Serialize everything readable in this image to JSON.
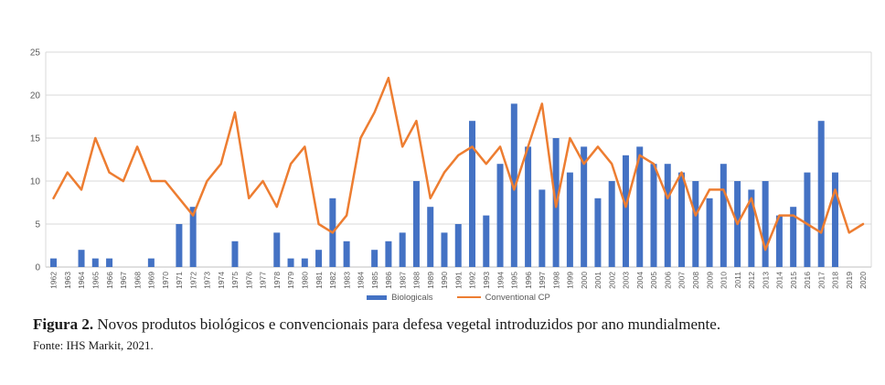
{
  "chart_data": {
    "type": "bar",
    "title": "",
    "xlabel": "",
    "ylabel": "",
    "categories": [
      "1962",
      "1963",
      "1964",
      "1965",
      "1966",
      "1967",
      "1968",
      "1969",
      "1970",
      "1971",
      "1972",
      "1973",
      "1974",
      "1975",
      "1976",
      "1977",
      "1978",
      "1979",
      "1980",
      "1981",
      "1982",
      "1983",
      "1984",
      "1985",
      "1986",
      "1987",
      "1988",
      "1989",
      "1990",
      "1991",
      "1992",
      "1993",
      "1994",
      "1995",
      "1996",
      "1997",
      "1998",
      "1999",
      "2000",
      "2001",
      "2002",
      "2003",
      "2004",
      "2005",
      "2006",
      "2007",
      "2008",
      "2009",
      "2010",
      "2011",
      "2012",
      "2013",
      "2014",
      "2015",
      "2016",
      "2017",
      "2018",
      "2019",
      "2020"
    ],
    "series": [
      {
        "name": "Biologicals",
        "type": "bar",
        "color": "#4472C4",
        "values": [
          1,
          0,
          2,
          1,
          1,
          0,
          0,
          1,
          0,
          5,
          7,
          0,
          0,
          3,
          0,
          0,
          4,
          1,
          1,
          2,
          8,
          3,
          0,
          2,
          3,
          4,
          10,
          7,
          4,
          5,
          17,
          6,
          12,
          19,
          14,
          9,
          15,
          11,
          14,
          8,
          10,
          13,
          14,
          12,
          12,
          11,
          10,
          8,
          12,
          10,
          9,
          10,
          6,
          7,
          11,
          17,
          11,
          0,
          0
        ]
      },
      {
        "name": "Conventional CP",
        "type": "line",
        "color": "#ED7D31",
        "values": [
          8,
          11,
          9,
          15,
          11,
          10,
          14,
          10,
          10,
          8,
          6,
          10,
          12,
          18,
          8,
          10,
          7,
          12,
          14,
          5,
          4,
          6,
          15,
          18,
          22,
          14,
          17,
          8,
          11,
          13,
          14,
          12,
          14,
          9,
          14,
          19,
          7,
          15,
          12,
          14,
          12,
          7,
          13,
          12,
          8,
          11,
          6,
          9,
          9,
          5,
          8,
          2,
          6,
          6,
          5,
          4,
          9,
          4,
          5
        ]
      }
    ],
    "ylim": [
      0,
      25
    ],
    "yticks": [
      0,
      5,
      10,
      15,
      20,
      25
    ],
    "grid": true,
    "legend_position": "bottom",
    "grid_color": "#D9D9D9",
    "axis_color": "#BFBFBF",
    "tick_label_color": "#595959"
  },
  "caption": {
    "label": "Figura 2.",
    "text": "Novos produtos biológicos e convencionais para defesa vegetal introduzidos por ano mundialmente."
  },
  "source": "Fonte: IHS Markit, 2021."
}
